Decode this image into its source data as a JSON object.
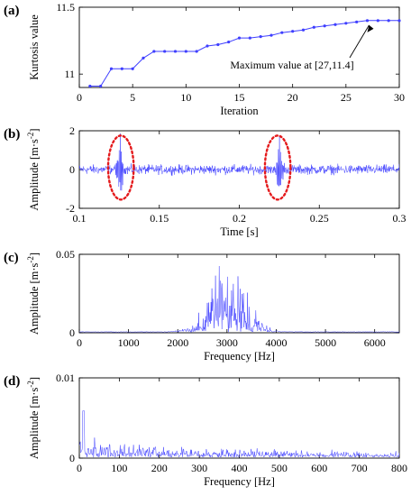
{
  "chart_data": [
    {
      "type": "line",
      "panel_label": "(a)",
      "title": "",
      "xlabel": "Iteration",
      "ylabel": "Kurtosis value",
      "xlim": [
        0,
        30
      ],
      "ylim": [
        10.9,
        11.5
      ],
      "xticks": [
        0,
        5,
        10,
        15,
        20,
        25,
        30
      ],
      "yticks": [
        11,
        11.5
      ],
      "grid": false,
      "series": [
        {
          "color": "#3f3fff",
          "marker": "dot",
          "x": [
            1,
            2,
            3,
            4,
            5,
            6,
            7,
            8,
            9,
            10,
            11,
            12,
            13,
            14,
            15,
            16,
            17,
            18,
            19,
            20,
            21,
            22,
            23,
            24,
            25,
            26,
            27,
            28,
            29,
            30
          ],
          "y": [
            10.91,
            10.91,
            11.04,
            11.04,
            11.04,
            11.12,
            11.17,
            11.17,
            11.17,
            11.17,
            11.17,
            11.21,
            11.22,
            11.24,
            11.27,
            11.27,
            11.28,
            11.29,
            11.31,
            11.32,
            11.33,
            11.35,
            11.36,
            11.37,
            11.38,
            11.39,
            11.4,
            11.4,
            11.4,
            11.4
          ]
        }
      ],
      "annotation": {
        "text": "Maximum value at [27,11.4]",
        "x": 27,
        "y": 11.4
      }
    },
    {
      "type": "line",
      "panel_label": "(b)",
      "title": "",
      "xlabel": "Time [s]",
      "ylabel": "Amplitude [m·s",
      "ylabel_sup": "-2",
      "ylabel_tail": "]",
      "xlim": [
        0.1,
        0.3
      ],
      "ylim": [
        -2,
        2
      ],
      "xticks": [
        0.1,
        0.15,
        0.2,
        0.25,
        0.3
      ],
      "xtick_labels": [
        "0.1",
        "0.15",
        "0.2",
        "0.25",
        "0.3"
      ],
      "yticks": [
        -2,
        0,
        2
      ],
      "grid": false,
      "series": [
        {
          "color": "#3f3fff",
          "signal": "time-domain vibration, impulses near 0.125 s and 0.225 s"
        }
      ],
      "highlights": [
        {
          "shape": "ellipse",
          "color": "#e41a1c",
          "x_center": 0.126,
          "y_center": 0.1,
          "x_halfwidth": 0.008,
          "y_halfwidth": 1.65
        },
        {
          "shape": "ellipse",
          "color": "#e41a1c",
          "x_center": 0.224,
          "y_center": 0.1,
          "x_halfwidth": 0.008,
          "y_halfwidth": 1.65
        }
      ]
    },
    {
      "type": "line",
      "panel_label": "(c)",
      "title": "",
      "xlabel": "Frequency [Hz]",
      "ylabel": "Amplitude [m·s",
      "ylabel_sup": "-2",
      "ylabel_tail": "]",
      "xlim": [
        0,
        6500
      ],
      "ylim": [
        0,
        0.05
      ],
      "xticks": [
        0,
        1000,
        2000,
        3000,
        4000,
        5000,
        6000
      ],
      "yticks": [
        0,
        0.05
      ],
      "grid": false,
      "series": [
        {
          "color": "#3f3fff",
          "signal": "spectrum band between ~1800 and ~4300 Hz, peak ~0.048 near 3000 Hz"
        }
      ]
    },
    {
      "type": "line",
      "panel_label": "(d)",
      "title": "",
      "xlabel": "Frequency [Hz]",
      "ylabel": "Amplitude [m·s",
      "ylabel_sup": "-2",
      "ylabel_tail": "]",
      "xlim": [
        0,
        800
      ],
      "ylim": [
        0,
        0.01
      ],
      "xticks": [
        0,
        100,
        200,
        300,
        400,
        500,
        600,
        700,
        800
      ],
      "yticks": [
        0,
        0.01
      ],
      "grid": false,
      "series": [
        {
          "color": "#3f3fff",
          "signal": "envelope spectrum, peak ~0.006 near 10 Hz, decaying harmonics"
        }
      ]
    }
  ]
}
